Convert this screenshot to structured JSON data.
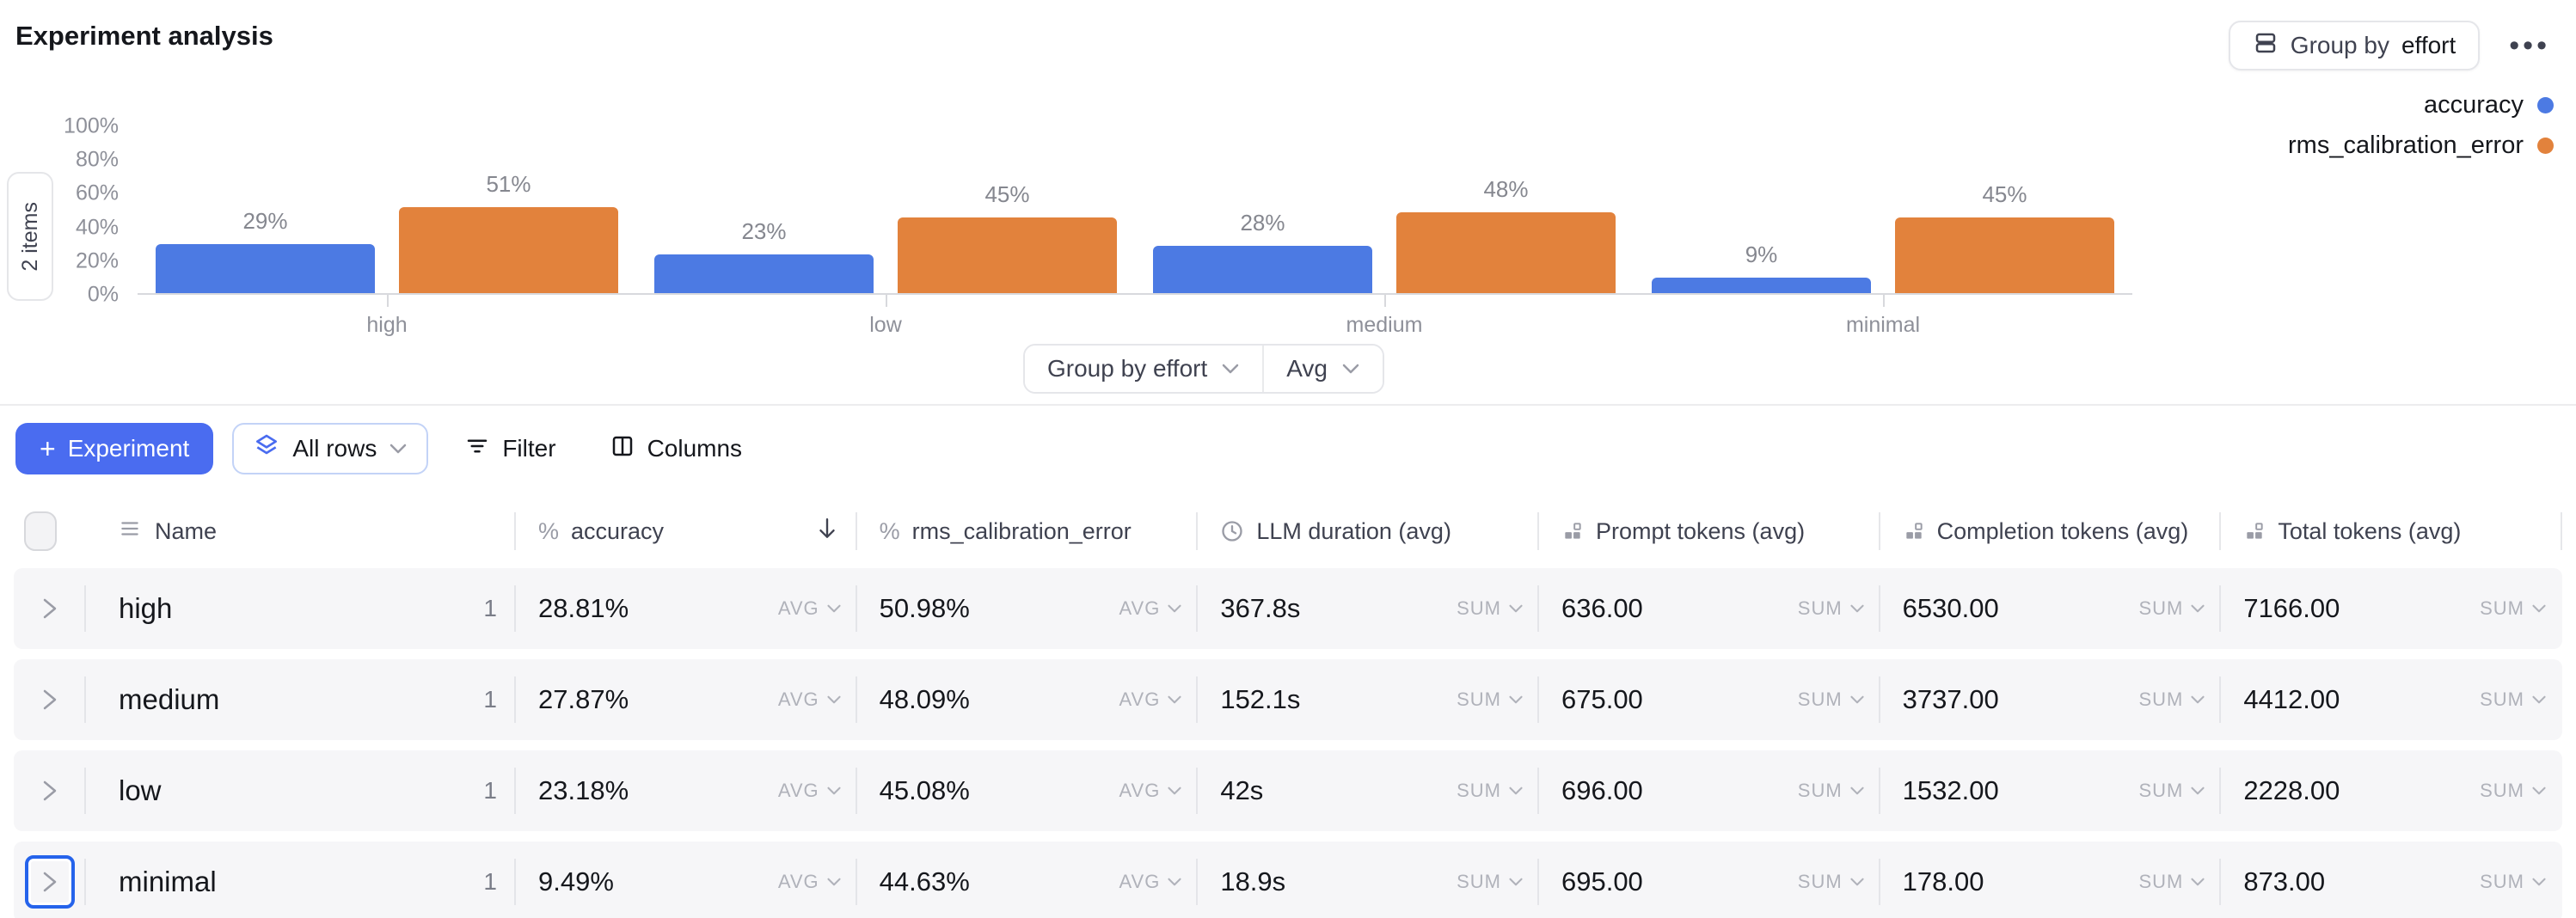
{
  "header": {
    "title": "Experiment analysis",
    "group_by_button": {
      "icon": "rows-icon",
      "prefix": "Group by",
      "value": "effort"
    },
    "more_label": "•••"
  },
  "chart_data": {
    "type": "bar",
    "categories": [
      "high",
      "low",
      "medium",
      "minimal"
    ],
    "series": [
      {
        "name": "accuracy",
        "color": "#4c7ae3",
        "values": [
          29,
          23,
          28,
          9
        ],
        "labels": [
          "29%",
          "23%",
          "28%",
          "9%"
        ]
      },
      {
        "name": "rms_calibration_error",
        "color": "#e2823c",
        "values": [
          51,
          45,
          48,
          45
        ],
        "labels": [
          "51%",
          "45%",
          "48%",
          "45%"
        ]
      }
    ],
    "y_ticks": [
      "100%",
      "80%",
      "60%",
      "40%",
      "20%",
      "0%"
    ],
    "ylim": [
      0,
      100
    ],
    "grid": false,
    "legend_position": "top-right",
    "items_badge": "2 items"
  },
  "chart_controls": {
    "group_by_label": "Group by effort",
    "aggregation_label": "Avg"
  },
  "toolbar": {
    "experiment_button": "Experiment",
    "rows_scope_button": "All rows",
    "filter_button": "Filter",
    "columns_button": "Columns"
  },
  "table": {
    "columns": [
      {
        "label": "Name",
        "icon": "menu-icon",
        "sorted": false
      },
      {
        "label": "accuracy",
        "icon": "percent-icon",
        "sorted": true,
        "sort_dir": "desc"
      },
      {
        "label": "rms_calibration_error",
        "icon": "percent-icon",
        "sorted": false
      },
      {
        "label": "LLM duration (avg)",
        "icon": "clock-icon",
        "sorted": false
      },
      {
        "label": "Prompt tokens (avg)",
        "icon": "tokens-icon",
        "sorted": false
      },
      {
        "label": "Completion tokens (avg)",
        "icon": "tokens-icon",
        "sorted": false
      },
      {
        "label": "Total tokens (avg)",
        "icon": "tokens-icon",
        "sorted": false
      }
    ],
    "rows": [
      {
        "name": "high",
        "count": "1",
        "focused": false,
        "cells": [
          {
            "value": "28.81%",
            "agg": "AVG"
          },
          {
            "value": "50.98%",
            "agg": "AVG"
          },
          {
            "value": "367.8s",
            "agg": "SUM"
          },
          {
            "value": "636.00",
            "agg": "SUM"
          },
          {
            "value": "6530.00",
            "agg": "SUM"
          },
          {
            "value": "7166.00",
            "agg": "SUM"
          }
        ]
      },
      {
        "name": "medium",
        "count": "1",
        "focused": false,
        "cells": [
          {
            "value": "27.87%",
            "agg": "AVG"
          },
          {
            "value": "48.09%",
            "agg": "AVG"
          },
          {
            "value": "152.1s",
            "agg": "SUM"
          },
          {
            "value": "675.00",
            "agg": "SUM"
          },
          {
            "value": "3737.00",
            "agg": "SUM"
          },
          {
            "value": "4412.00",
            "agg": "SUM"
          }
        ]
      },
      {
        "name": "low",
        "count": "1",
        "focused": false,
        "cells": [
          {
            "value": "23.18%",
            "agg": "AVG"
          },
          {
            "value": "45.08%",
            "agg": "AVG"
          },
          {
            "value": "42s",
            "agg": "SUM"
          },
          {
            "value": "696.00",
            "agg": "SUM"
          },
          {
            "value": "1532.00",
            "agg": "SUM"
          },
          {
            "value": "2228.00",
            "agg": "SUM"
          }
        ]
      },
      {
        "name": "minimal",
        "count": "1",
        "focused": true,
        "cells": [
          {
            "value": "9.49%",
            "agg": "AVG"
          },
          {
            "value": "44.63%",
            "agg": "AVG"
          },
          {
            "value": "18.9s",
            "agg": "SUM"
          },
          {
            "value": "695.00",
            "agg": "SUM"
          },
          {
            "value": "178.00",
            "agg": "SUM"
          },
          {
            "value": "873.00",
            "agg": "SUM"
          }
        ]
      }
    ]
  }
}
